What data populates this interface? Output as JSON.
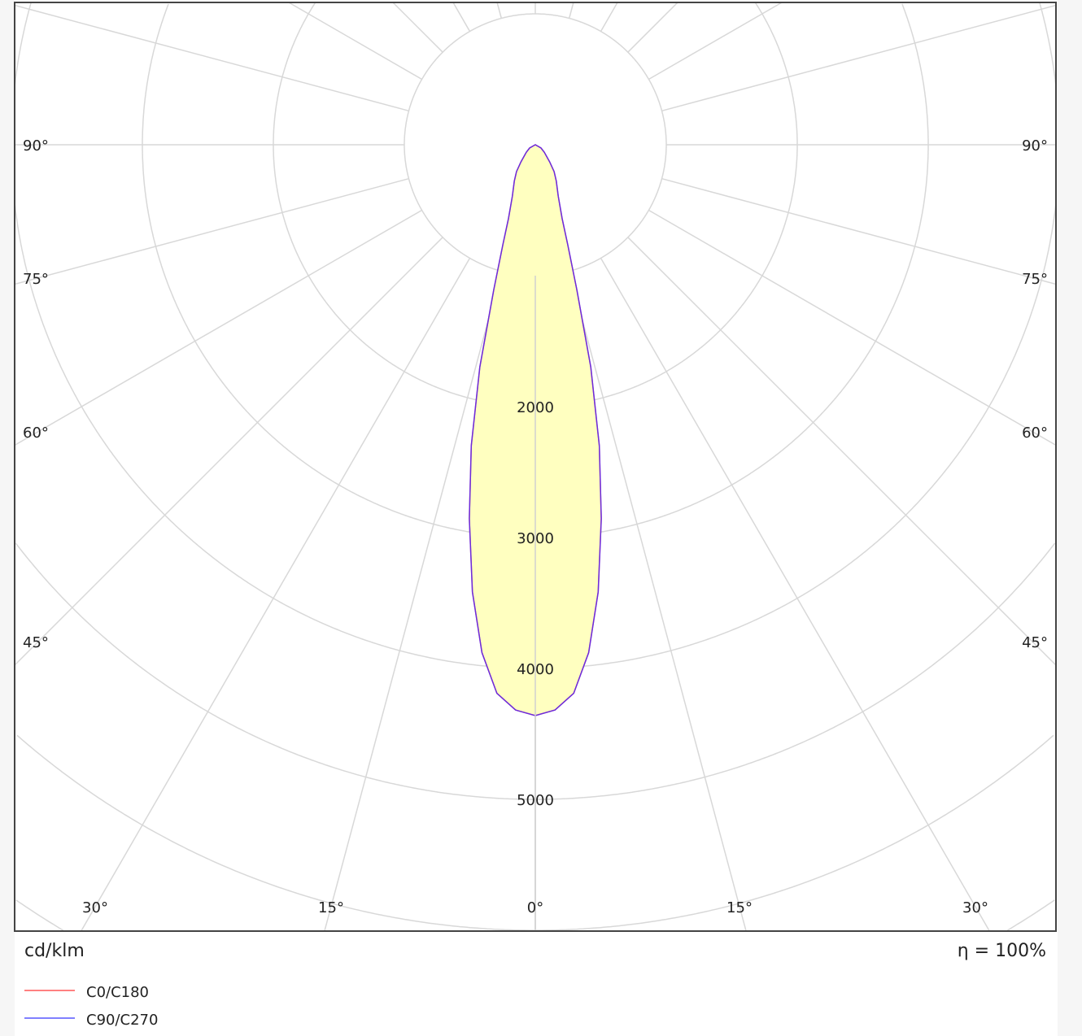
{
  "chart_data": {
    "type": "polar",
    "unit_label": "cd/klm",
    "efficiency_label": "η = 100%",
    "radial_ticks": [
      1000,
      2000,
      3000,
      4000,
      5000,
      6000,
      7000,
      8000
    ],
    "radial_tick_labels": [
      "2000",
      "3000",
      "4000",
      "5000"
    ],
    "angle_labels_left": [
      "90°",
      "75°",
      "60°",
      "45°"
    ],
    "angle_labels_right": [
      "90°",
      "75°",
      "60°",
      "45°"
    ],
    "angle_labels_bottom": [
      "30°",
      "15°",
      "0°",
      "15°",
      "30°"
    ],
    "grid": true,
    "legend_placement": "bottom-left",
    "fill_color": "#ffffc0",
    "series": [
      {
        "name": "C0/C180",
        "color": "#ff8080",
        "angles": [
          0,
          2,
          4,
          6,
          8,
          10,
          12,
          14,
          16,
          18,
          20,
          24,
          30,
          35,
          40,
          50,
          60,
          90
        ],
        "values": [
          4360,
          4320,
          4200,
          3900,
          3450,
          2900,
          2350,
          1750,
          1150,
          800,
          600,
          430,
          320,
          250,
          170,
          90,
          50,
          0
        ]
      },
      {
        "name": "C90/C270",
        "color": "#8080ff",
        "angles": [
          0,
          2,
          4,
          6,
          8,
          10,
          12,
          14,
          16,
          18,
          20,
          24,
          30,
          35,
          40,
          50,
          60,
          90
        ],
        "values": [
          4360,
          4320,
          4200,
          3900,
          3450,
          2900,
          2350,
          1750,
          1150,
          800,
          600,
          430,
          320,
          250,
          170,
          90,
          50,
          0
        ]
      }
    ]
  }
}
